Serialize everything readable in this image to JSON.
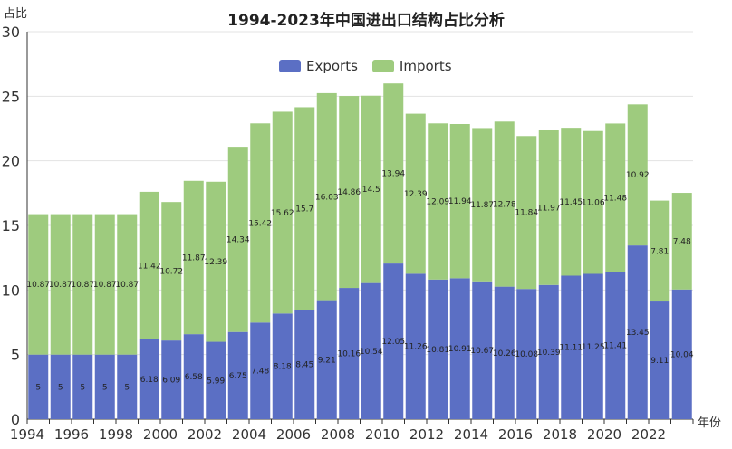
{
  "chart_data": {
    "type": "bar",
    "stacked": true,
    "title": "1994-2023年中国进出口结构占比分析",
    "xlabel": "年份",
    "ylabel": "占比",
    "ylim": [
      0,
      30
    ],
    "yticks": [
      0,
      5,
      10,
      15,
      20,
      25,
      30
    ],
    "legend_position": "top-center",
    "grid": true,
    "categories": [
      "1994",
      "1995",
      "1996",
      "1997",
      "1998",
      "1999",
      "2000",
      "2001",
      "2002",
      "2003",
      "2004",
      "2005",
      "2006",
      "2007",
      "2008",
      "2009",
      "2010",
      "2011",
      "2012",
      "2013",
      "2014",
      "2015",
      "2016",
      "2017",
      "2018",
      "2019",
      "2020",
      "2021",
      "2022",
      "2023"
    ],
    "x_tick_labels": [
      "1994",
      "1996",
      "1998",
      "2000",
      "2002",
      "2004",
      "2006",
      "2008",
      "2010",
      "2012",
      "2014",
      "2016",
      "2018",
      "2020",
      "2022"
    ],
    "series": [
      {
        "name": "Exports",
        "color": "#5b6fc4",
        "values": [
          5,
          5,
          5,
          5,
          5,
          6.18,
          6.09,
          6.58,
          5.99,
          6.75,
          7.48,
          8.18,
          8.45,
          9.21,
          10.16,
          10.54,
          12.05,
          11.26,
          10.81,
          10.91,
          10.67,
          10.26,
          10.08,
          10.39,
          11.11,
          11.25,
          11.41,
          13.45,
          9.11,
          10.04
        ]
      },
      {
        "name": "Imports",
        "color": "#9ecb7e",
        "values": [
          10.87,
          10.87,
          10.87,
          10.87,
          10.87,
          11.42,
          10.72,
          11.87,
          12.39,
          14.34,
          15.42,
          15.62,
          15.7,
          16.03,
          14.86,
          14.5,
          13.94,
          12.39,
          12.09,
          11.94,
          11.87,
          12.78,
          11.84,
          11.97,
          11.45,
          11.06,
          11.48,
          10.92,
          7.81,
          7.48
        ]
      }
    ]
  }
}
